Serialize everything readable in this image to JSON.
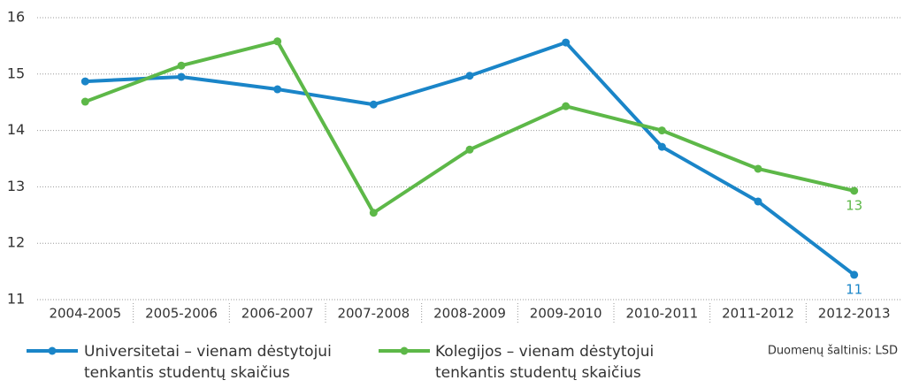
{
  "chart_data": {
    "type": "line",
    "categories": [
      "2004-2005",
      "2005-2006",
      "2006-2007",
      "2007-2008",
      "2008-2009",
      "2009-2010",
      "2010-2011",
      "2011-2012",
      "2012-2013"
    ],
    "series": [
      {
        "name": "Universitetai – vienam dėstytojui tenkantis studentų skaičius",
        "color": "#1a85c8",
        "values": [
          14.87,
          14.95,
          14.73,
          14.46,
          14.97,
          15.56,
          13.71,
          12.74,
          11.44
        ],
        "value_labels": [
          null,
          null,
          null,
          null,
          null,
          null,
          null,
          null,
          "11"
        ]
      },
      {
        "name": "Kolegijos – vienam dėstytojui tenkantis studentų skaičius",
        "color": "#5db848",
        "values": [
          14.51,
          15.15,
          15.58,
          12.54,
          13.66,
          14.43,
          14.0,
          13.32,
          12.93
        ],
        "value_labels": [
          null,
          null,
          null,
          null,
          null,
          null,
          null,
          null,
          "13"
        ]
      }
    ],
    "ylim": [
      11,
      16
    ],
    "yticks": [
      11,
      12,
      13,
      14,
      15,
      16
    ],
    "grid": true,
    "source": "Duomenų šaltinis: LSD"
  }
}
